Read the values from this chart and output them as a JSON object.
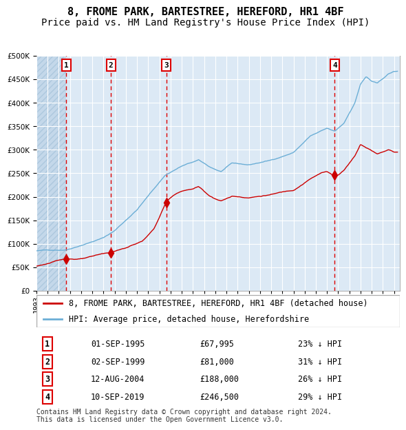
{
  "title": "8, FROME PARK, BARTESTREE, HEREFORD, HR1 4BF",
  "subtitle": "Price paid vs. HM Land Registry's House Price Index (HPI)",
  "xlabel": "",
  "ylabel": "",
  "ylim": [
    0,
    500000
  ],
  "yticks": [
    0,
    50000,
    100000,
    150000,
    200000,
    250000,
    300000,
    350000,
    400000,
    450000,
    500000
  ],
  "xlim_start": 1993.0,
  "xlim_end": 2025.5,
  "background_color": "#dce9f5",
  "plot_bg_color": "#dce9f5",
  "hatch_color": "#b0c8e0",
  "grid_color": "#ffffff",
  "purchases": [
    {
      "year": 1995.67,
      "price": 67995,
      "label": "1"
    },
    {
      "year": 1999.67,
      "price": 81000,
      "label": "2"
    },
    {
      "year": 2004.62,
      "price": 188000,
      "label": "3"
    },
    {
      "year": 2019.69,
      "price": 246500,
      "label": "4"
    }
  ],
  "vline_years": [
    1995.67,
    1999.67,
    2004.62,
    2019.69
  ],
  "table_rows": [
    [
      "1",
      "01-SEP-1995",
      "£67,995",
      "23% ↓ HPI"
    ],
    [
      "2",
      "02-SEP-1999",
      "£81,000",
      "31% ↓ HPI"
    ],
    [
      "3",
      "12-AUG-2004",
      "£188,000",
      "26% ↓ HPI"
    ],
    [
      "4",
      "10-SEP-2019",
      "£246,500",
      "29% ↓ HPI"
    ]
  ],
  "legend_property_label": "8, FROME PARK, BARTESTREE, HEREFORD, HR1 4BF (detached house)",
  "legend_hpi_label": "HPI: Average price, detached house, Herefordshire",
  "footer": "Contains HM Land Registry data © Crown copyright and database right 2024.\nThis data is licensed under the Open Government Licence v3.0.",
  "property_line_color": "#cc0000",
  "hpi_line_color": "#6baed6",
  "marker_color": "#cc0000",
  "vline_color": "#dd0000",
  "box_color": "#dd0000",
  "title_fontsize": 11,
  "subtitle_fontsize": 10,
  "tick_fontsize": 7.5,
  "legend_fontsize": 8.5,
  "table_fontsize": 8.5,
  "footer_fontsize": 7
}
